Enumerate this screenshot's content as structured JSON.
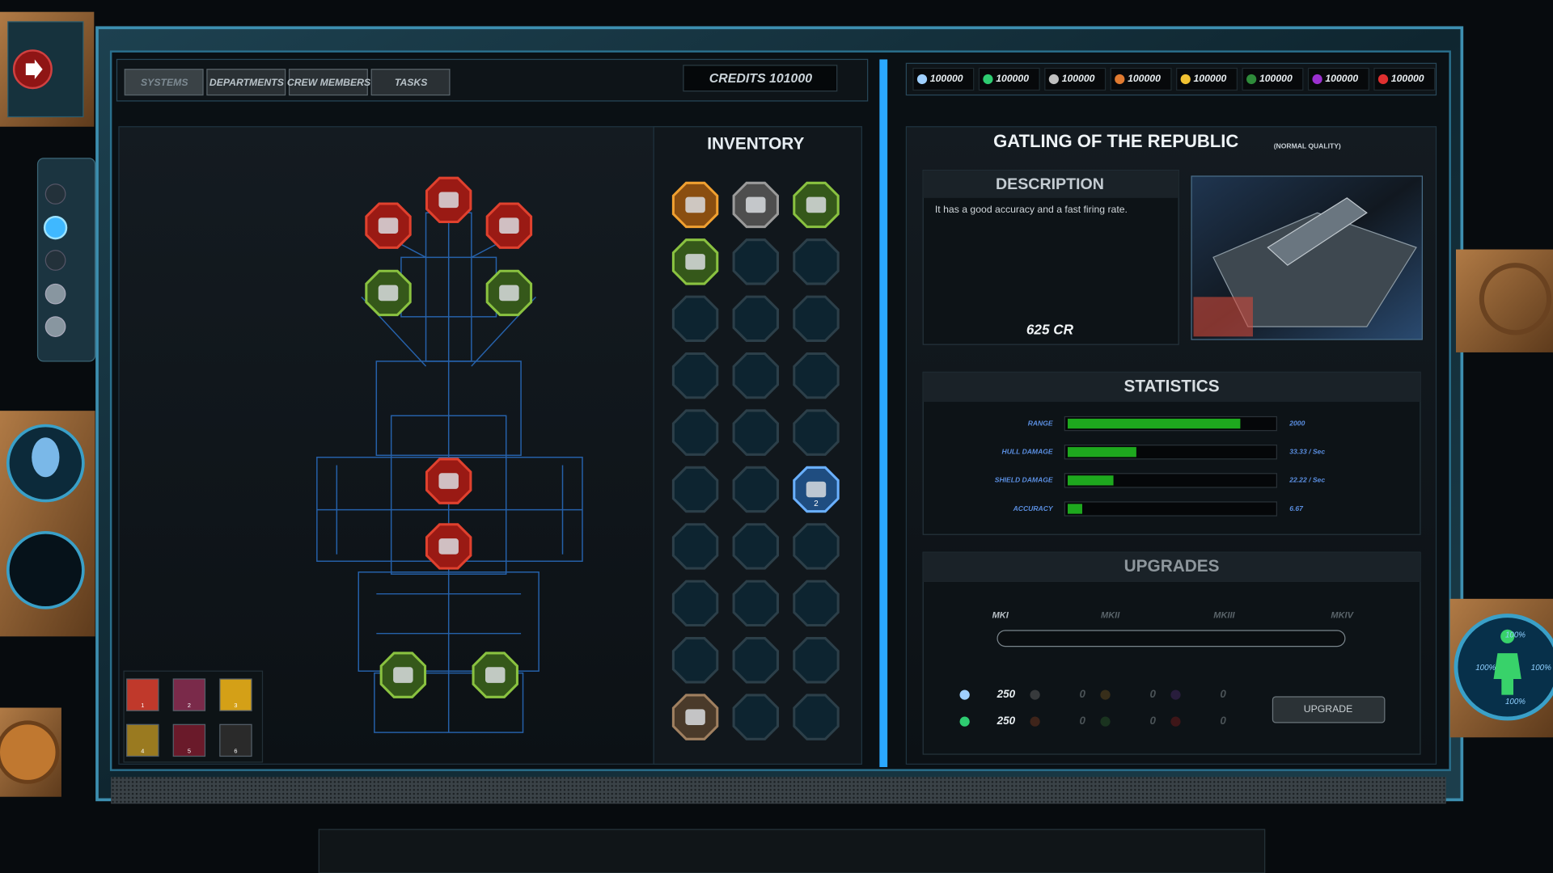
{
  "tabs": [
    "SYSTEMS",
    "DEPARTMENTS",
    "CREW MEMBERS",
    "TASKS"
  ],
  "credits": "CREDITS 101000",
  "resources": [
    100000,
    100000,
    100000,
    100000,
    100000,
    100000,
    100000,
    100000
  ],
  "inventory": {
    "title": "INVENTORY",
    "badge": 2
  },
  "skills": [
    1,
    2,
    3,
    4,
    5,
    6
  ],
  "item": {
    "name": "GATLING OF THE REPUBLIC",
    "quality": "(NORMAL QUALITY)",
    "description_title": "DESCRIPTION",
    "description": "It has a good accuracy and a fast firing rate.",
    "price": "625 CR"
  },
  "statistics": {
    "title": "STATISTICS",
    "rows": [
      {
        "label": "RANGE",
        "value": "2000",
        "level": 83
      },
      {
        "label": "HULL DAMAGE",
        "value": "33.33 / Sec",
        "level": 33
      },
      {
        "label": "SHIELD DAMAGE",
        "value": "22.22 / Sec",
        "level": 22
      },
      {
        "label": "ACCURACY",
        "value": "6.67",
        "level": 7
      }
    ]
  },
  "upgrades": {
    "title": "UPGRADES",
    "levels": [
      "MKI",
      "MKII",
      "MKIII",
      "MKIV"
    ],
    "costs": [
      [
        250,
        0,
        0,
        0
      ],
      [
        250,
        0,
        0,
        0
      ]
    ],
    "button": "UPGRADE"
  },
  "crew_status": [
    "100%",
    "100%",
    "100%",
    "100%"
  ]
}
